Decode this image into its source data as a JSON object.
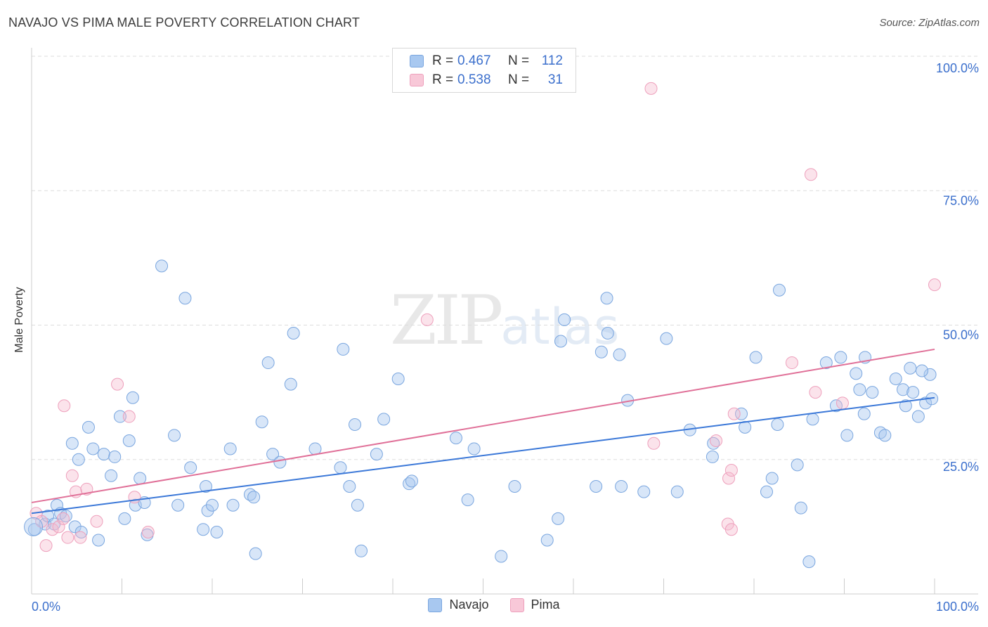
{
  "title": "NAVAJO VS PIMA MALE POVERTY CORRELATION CHART",
  "source": "Source: ZipAtlas.com",
  "watermark": {
    "zip": "ZIP",
    "atlas": "atlas"
  },
  "legend_top": [
    {
      "r_label": "R =",
      "r_value": "0.467",
      "n_label": "N =",
      "n_value": "112"
    },
    {
      "r_label": "R =",
      "r_value": "0.538",
      "n_label": "N =",
      "n_value": "31"
    }
  ],
  "legend_bottom": [
    {
      "label": "Navajo"
    },
    {
      "label": "Pima"
    }
  ],
  "colors": {
    "navajo": "#a8c8f0",
    "navajo_line": "#3b78d8",
    "pima": "#f5b8cc",
    "pima_line": "#e07098",
    "tick_text": "#3b6fcc",
    "grid": "#dddddd"
  },
  "chart_data": {
    "type": "scatter",
    "title": "NAVAJO VS PIMA MALE POVERTY CORRELATION CHART",
    "xlabel": "",
    "ylabel": "Male Poverty",
    "xlim": [
      0,
      100
    ],
    "ylim": [
      0,
      100
    ],
    "x_tick_labels": [
      "0.0%",
      "100.0%"
    ],
    "y_ticks": [
      25,
      50,
      75,
      100
    ],
    "y_tick_labels": [
      "25.0%",
      "50.0%",
      "75.0%",
      "100.0%"
    ],
    "series": [
      {
        "name": "Navajo",
        "trend": [
          [
            0,
            15.0
          ],
          [
            100,
            36.5
          ]
        ],
        "points": [
          [
            0.3,
            12
          ],
          [
            1.5,
            13
          ],
          [
            1.8,
            14.5
          ],
          [
            2.5,
            13
          ],
          [
            2.8,
            16.5
          ],
          [
            3.2,
            15
          ],
          [
            3.8,
            14.5
          ],
          [
            4.5,
            28
          ],
          [
            4.8,
            12.5
          ],
          [
            5.2,
            25
          ],
          [
            5.5,
            11.5
          ],
          [
            6.3,
            31
          ],
          [
            6.8,
            27
          ],
          [
            7.4,
            10
          ],
          [
            8,
            26
          ],
          [
            8.8,
            22
          ],
          [
            9.2,
            25.5
          ],
          [
            9.8,
            33
          ],
          [
            10.3,
            14
          ],
          [
            10.8,
            28.5
          ],
          [
            11.2,
            36.5
          ],
          [
            11.5,
            16.5
          ],
          [
            12,
            21.5
          ],
          [
            12.5,
            17
          ],
          [
            12.8,
            11
          ],
          [
            14.4,
            61
          ],
          [
            16.2,
            16.5
          ],
          [
            17,
            55
          ],
          [
            15.8,
            29.5
          ],
          [
            17.6,
            23.5
          ],
          [
            19,
            12
          ],
          [
            19.5,
            15.5
          ],
          [
            20,
            16.5
          ],
          [
            19.3,
            20
          ],
          [
            20.5,
            11.5
          ],
          [
            22.3,
            16.5
          ],
          [
            22,
            27
          ],
          [
            24.2,
            18.5
          ],
          [
            24.6,
            18
          ],
          [
            24.8,
            7.5
          ],
          [
            25.5,
            32
          ],
          [
            26.2,
            43
          ],
          [
            26.7,
            26
          ],
          [
            27.5,
            24.5
          ],
          [
            28.7,
            39
          ],
          [
            29,
            48.5
          ],
          [
            31.4,
            27
          ],
          [
            34.5,
            45.5
          ],
          [
            34.2,
            23.5
          ],
          [
            35.2,
            20
          ],
          [
            35.8,
            31.5
          ],
          [
            36.1,
            16.5
          ],
          [
            36.5,
            8
          ],
          [
            38.2,
            26
          ],
          [
            39,
            32.5
          ],
          [
            40.6,
            40
          ],
          [
            41.8,
            20.5
          ],
          [
            42.1,
            21
          ],
          [
            47,
            29
          ],
          [
            48.3,
            17.5
          ],
          [
            49,
            27
          ],
          [
            52,
            7
          ],
          [
            53.5,
            20
          ],
          [
            57.1,
            10
          ],
          [
            58.6,
            47
          ],
          [
            59,
            51
          ],
          [
            58.3,
            14
          ],
          [
            62.5,
            20
          ],
          [
            63.1,
            45
          ],
          [
            63.8,
            48.5
          ],
          [
            63.7,
            55
          ],
          [
            65.1,
            44.5
          ],
          [
            65.3,
            20
          ],
          [
            66,
            36
          ],
          [
            67.8,
            19
          ],
          [
            70.3,
            47.5
          ],
          [
            72.9,
            30.5
          ],
          [
            71.5,
            19
          ],
          [
            75.5,
            28
          ],
          [
            75.4,
            25.5
          ],
          [
            78.6,
            33.5
          ],
          [
            79,
            31
          ],
          [
            80.2,
            44
          ],
          [
            81.4,
            19
          ],
          [
            82,
            21.5
          ],
          [
            82.8,
            56.5
          ],
          [
            82.6,
            31.5
          ],
          [
            84.8,
            24
          ],
          [
            85.2,
            16
          ],
          [
            86.5,
            32.5
          ],
          [
            88,
            43
          ],
          [
            89.1,
            35
          ],
          [
            89.6,
            44
          ],
          [
            90.3,
            29.5
          ],
          [
            91.3,
            41
          ],
          [
            91.7,
            38
          ],
          [
            92.2,
            33.5
          ],
          [
            92.3,
            44
          ],
          [
            93.1,
            37.5
          ],
          [
            94,
            30
          ],
          [
            94.5,
            29.5
          ],
          [
            95.7,
            40
          ],
          [
            96.5,
            38
          ],
          [
            96.8,
            35
          ],
          [
            97.6,
            37.5
          ],
          [
            98.2,
            33
          ],
          [
            99,
            35.5
          ],
          [
            99.7,
            36.3
          ],
          [
            99.5,
            40.8
          ],
          [
            98.6,
            41.5
          ],
          [
            97.3,
            42
          ],
          [
            86.1,
            6
          ]
        ]
      },
      {
        "name": "Pima",
        "trend": [
          [
            0,
            17.0
          ],
          [
            100,
            45.5
          ]
        ],
        "points": [
          [
            0.5,
            15
          ],
          [
            1.1,
            13.5
          ],
          [
            1.6,
            9
          ],
          [
            2.3,
            12
          ],
          [
            3,
            12.5
          ],
          [
            3.6,
            35
          ],
          [
            4,
            10.5
          ],
          [
            4.5,
            22
          ],
          [
            4.9,
            19
          ],
          [
            5.4,
            10.5
          ],
          [
            6.1,
            19.5
          ],
          [
            7.2,
            13.5
          ],
          [
            9.5,
            39
          ],
          [
            10.8,
            33
          ],
          [
            11.4,
            18
          ],
          [
            12.9,
            11.5
          ],
          [
            43.8,
            51
          ],
          [
            68.6,
            94
          ],
          [
            68.9,
            28
          ],
          [
            75.8,
            28.5
          ],
          [
            77.2,
            21.5
          ],
          [
            77.5,
            23
          ],
          [
            77.1,
            13
          ],
          [
            77.5,
            12
          ],
          [
            77.8,
            33.5
          ],
          [
            84.2,
            43
          ],
          [
            86.3,
            78
          ],
          [
            86.8,
            37.5
          ],
          [
            89.8,
            35.5
          ],
          [
            100,
            57.5
          ],
          [
            3.5,
            14
          ]
        ]
      }
    ]
  }
}
